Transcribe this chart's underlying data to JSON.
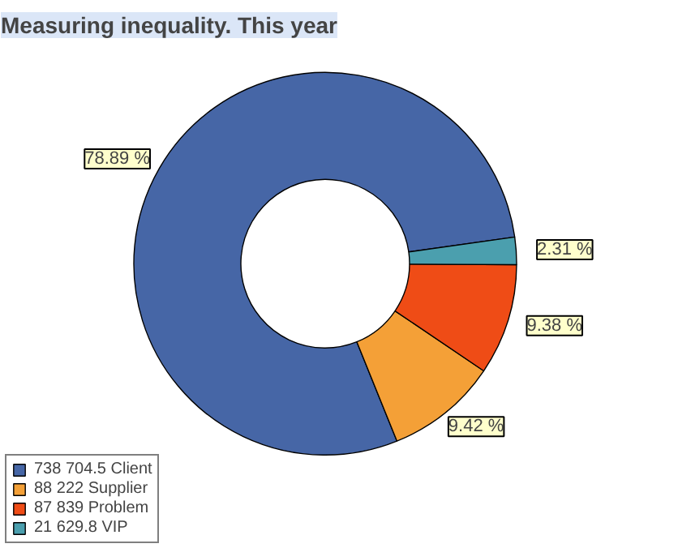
{
  "chart_data": {
    "type": "donut",
    "title": "Measuring inequality. This year",
    "categories": [
      "738 704.5 Client",
      "88 222 Supplier",
      "87 839 Problem",
      "21 629.8 VIP"
    ],
    "values": [
      78.89,
      9.42,
      9.38,
      2.31
    ],
    "colors": [
      "#4666a6",
      "#f4a037",
      "#ef4c16",
      "#4b9fae"
    ],
    "value_labels": [
      "78.89 %",
      "9.42 %",
      "9.38 %",
      "2.31 %"
    ],
    "legend": "bottom left"
  }
}
